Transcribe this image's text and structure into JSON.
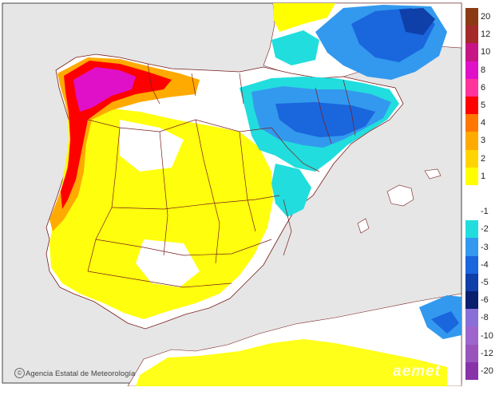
{
  "map": {
    "legend": {
      "items": [
        {
          "label": "20",
          "color": "#8c3a14"
        },
        {
          "label": "12",
          "color": "#a52a2a"
        },
        {
          "label": "10",
          "color": "#c71585"
        },
        {
          "label": "8",
          "color": "#e010c8"
        },
        {
          "label": "6",
          "color": "#ff3399"
        },
        {
          "label": "5",
          "color": "#ff0000"
        },
        {
          "label": "4",
          "color": "#ff7700"
        },
        {
          "label": "3",
          "color": "#ffaa00"
        },
        {
          "label": "2",
          "color": "#ffd400"
        },
        {
          "label": "1",
          "color": "#ffff00"
        },
        {
          "label": "",
          "color": "#ffffff"
        },
        {
          "label": "-1",
          "color": "#ffffff"
        },
        {
          "label": "-2",
          "color": "#22dddd"
        },
        {
          "label": "-3",
          "color": "#3399ee"
        },
        {
          "label": "-4",
          "color": "#1a66dd"
        },
        {
          "label": "-5",
          "color": "#0f3fa8"
        },
        {
          "label": "-6",
          "color": "#0a1f6e"
        },
        {
          "label": "-8",
          "color": "#8a6fd8"
        },
        {
          "label": "-10",
          "color": "#9e66cc"
        },
        {
          "label": "-12",
          "color": "#9955bb"
        },
        {
          "label": "-20",
          "color": "#8833aa"
        }
      ]
    },
    "credit": "Agencia Estatal de Meteorología",
    "credit_icon": "©",
    "logo": "aemet",
    "colors": {
      "sea": "#e6e6e6",
      "land": "#ffffff",
      "border": "#7a1c1c",
      "frame": "#444444"
    }
  }
}
